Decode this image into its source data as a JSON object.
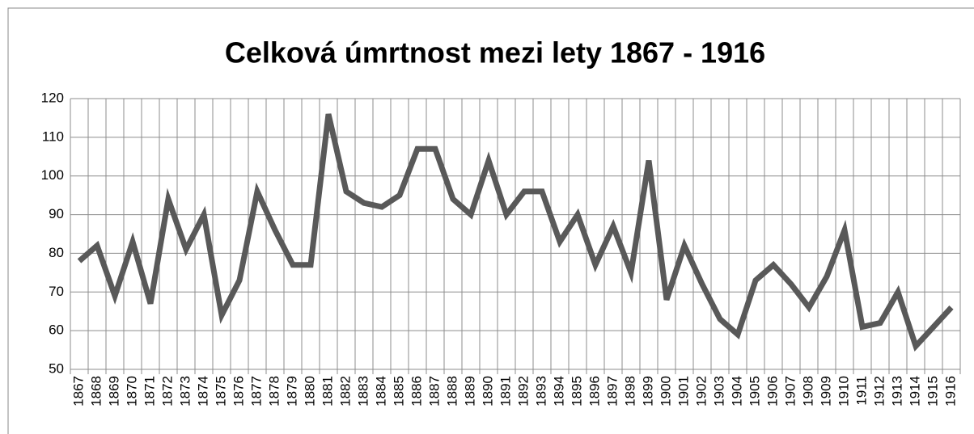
{
  "chart_data": {
    "type": "line",
    "title": "Celková úmrtnost mezi lety 1867 - 1916",
    "categories": [
      "1867",
      "1868",
      "1869",
      "1870",
      "1871",
      "1872",
      "1873",
      "1874",
      "1875",
      "1876",
      "1877",
      "1878",
      "1879",
      "1880",
      "1881",
      "1882",
      "1883",
      "1884",
      "1885",
      "1886",
      "1887",
      "1888",
      "1889",
      "1890",
      "1891",
      "1892",
      "1893",
      "1894",
      "1895",
      "1896",
      "1897",
      "1898",
      "1899",
      "1900",
      "1901",
      "1902",
      "1903",
      "1904",
      "1905",
      "1906",
      "1907",
      "1908",
      "1909",
      "1910",
      "1911",
      "1912",
      "1913",
      "1914",
      "1915",
      "1916"
    ],
    "values": [
      78,
      82,
      69,
      83,
      67,
      94,
      81,
      90,
      64,
      73,
      96,
      86,
      77,
      77,
      116,
      96,
      93,
      92,
      95,
      107,
      107,
      94,
      90,
      104,
      90,
      96,
      96,
      83,
      90,
      77,
      87,
      75,
      104,
      68,
      82,
      72,
      63,
      59,
      73,
      77,
      72,
      66,
      74,
      86,
      61,
      62,
      70,
      56,
      61,
      66
    ],
    "color": "#595959",
    "ylim": [
      50,
      120
    ],
    "yticks": [
      50,
      60,
      70,
      80,
      90,
      100,
      110,
      120
    ],
    "grid": true
  }
}
